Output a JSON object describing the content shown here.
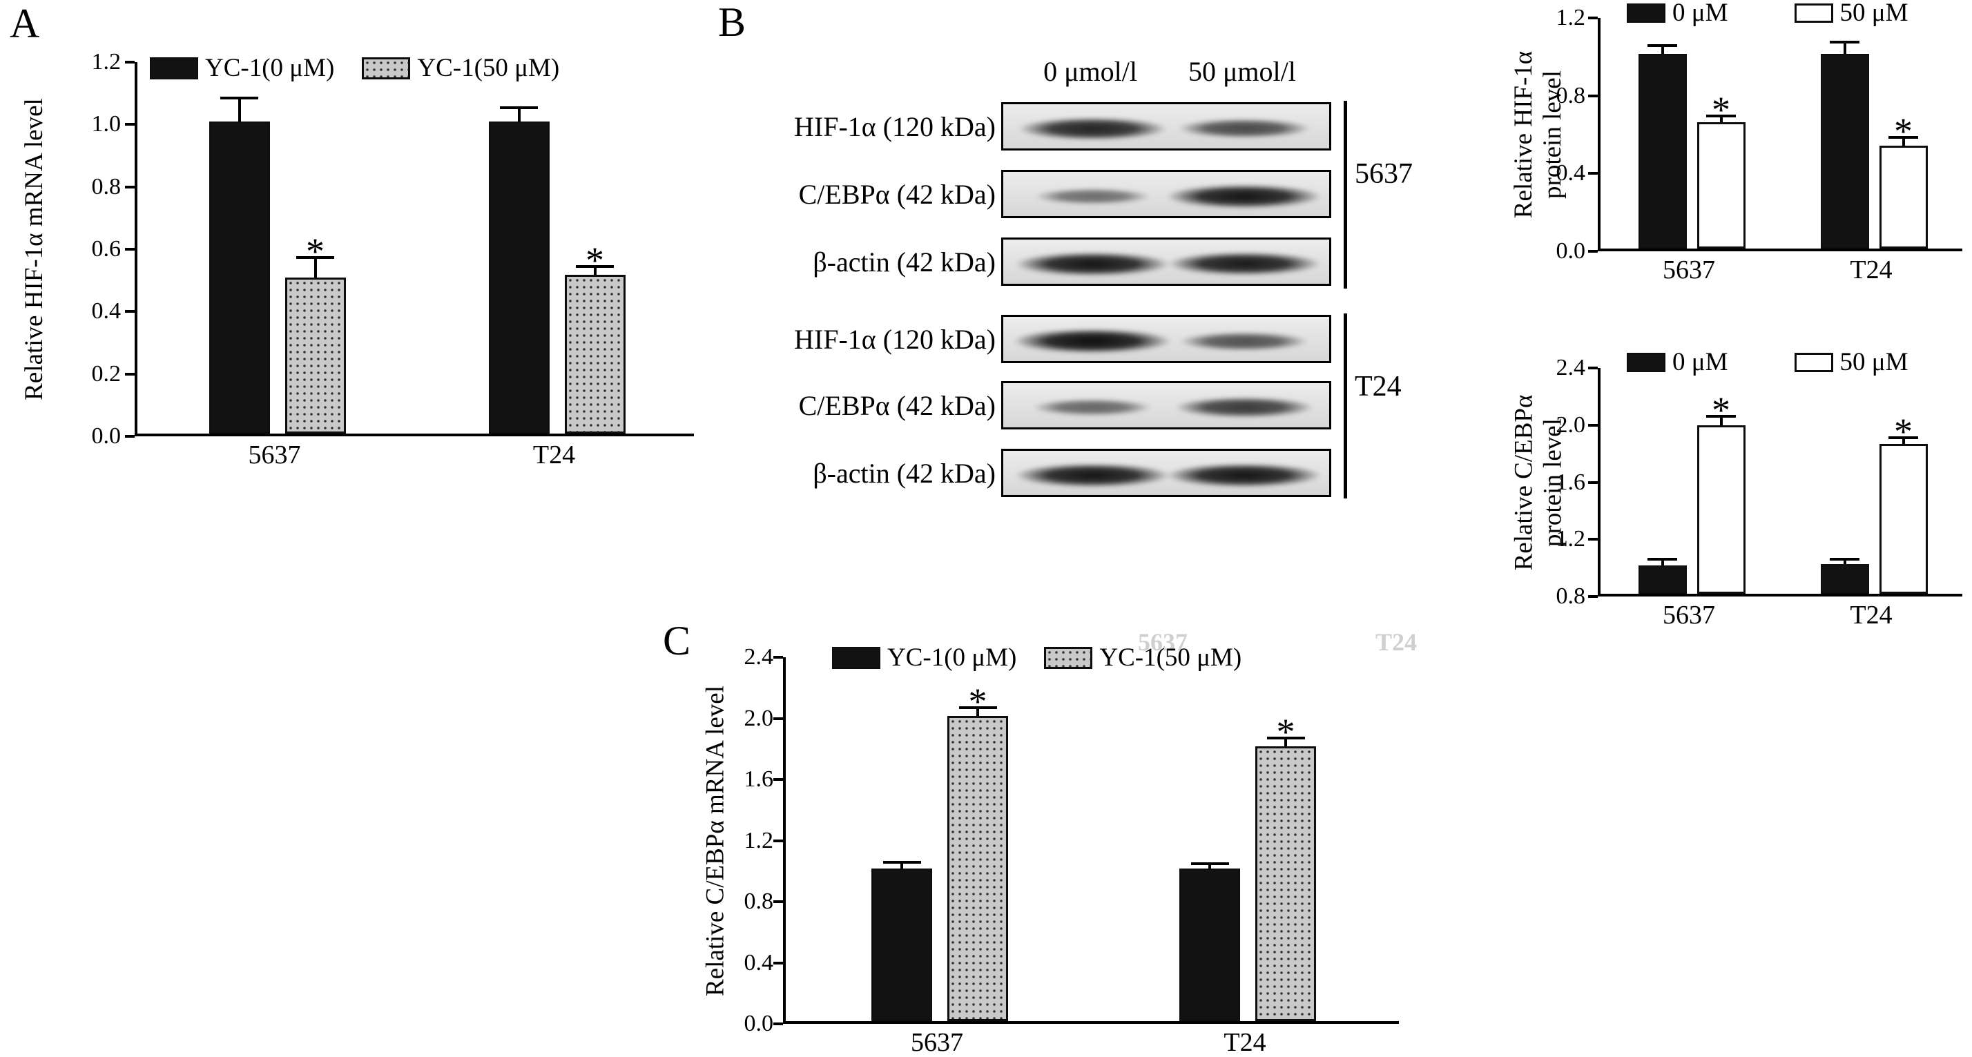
{
  "figure": {
    "panels": {
      "a": {
        "label": "A"
      },
      "b": {
        "label": "B"
      },
      "c": {
        "label": "C"
      }
    },
    "western_blot": {
      "col_headers": [
        "0 μmol/l",
        "50 μmol/l"
      ],
      "groups": [
        {
          "name": "5637",
          "rows": [
            {
              "label": "HIF-1α (120 kDa)",
              "bands": [
                0.85,
                0.6
              ]
            },
            {
              "label": "C/EBPα (42 kDa)",
              "bands": [
                0.35,
                0.95
              ]
            },
            {
              "label": "β-actin (42 kDa)",
              "bands": [
                0.95,
                0.92
              ]
            }
          ]
        },
        {
          "name": "T24",
          "rows": [
            {
              "label": "HIF-1α (120 kDa)",
              "bands": [
                1.0,
                0.55
              ]
            },
            {
              "label": "C/EBPα (42 kDa)",
              "bands": [
                0.4,
                0.7
              ]
            },
            {
              "label": "β-actin (42 kDa)",
              "bands": [
                0.95,
                0.95
              ]
            }
          ]
        }
      ]
    },
    "artifacts": {
      "c_top_left": "5637",
      "c_top_right": "T24"
    },
    "colors": {
      "bar_black": "#121212",
      "bar_white": "#ffffff",
      "bar_dotted_bg": "#c9c9c9",
      "axis": "#000000"
    }
  },
  "chart_data": [
    {
      "id": "hif1a_mrna",
      "type": "bar",
      "title": "",
      "xlabel": "",
      "ylabel": "Relative HIF-1α mRNA level",
      "ylabel_lines": [
        "Relative HIF-1α mRNA level"
      ],
      "categories": [
        "5637",
        "T24"
      ],
      "series": [
        {
          "name": "YC-1(0 μM)",
          "fill": "black",
          "values": [
            1.0,
            1.0
          ],
          "errors": [
            0.08,
            0.05
          ],
          "sig": [
            "",
            ""
          ]
        },
        {
          "name": "YC-1(50 μM)",
          "fill": "dotted",
          "values": [
            0.5,
            0.51
          ],
          "errors": [
            0.07,
            0.03
          ],
          "sig": [
            "*",
            "*"
          ]
        }
      ],
      "ylim": [
        0.0,
        1.2
      ],
      "yticks": [
        0.0,
        0.2,
        0.4,
        0.6,
        0.8,
        1.0,
        1.2
      ],
      "legend_position": "top",
      "grid": false
    },
    {
      "id": "hif1a_protein",
      "type": "bar",
      "title": "",
      "xlabel": "",
      "ylabel": "Relative HIF-1α protein level",
      "ylabel_lines": [
        "Relative HIF-1α",
        "protein level"
      ],
      "categories": [
        "5637",
        "T24"
      ],
      "series": [
        {
          "name": "0 μM",
          "fill": "black",
          "values": [
            1.0,
            1.0
          ],
          "errors": [
            0.05,
            0.07
          ],
          "sig": [
            "",
            ""
          ]
        },
        {
          "name": "50 μM",
          "fill": "white",
          "values": [
            0.65,
            0.53
          ],
          "errors": [
            0.04,
            0.05
          ],
          "sig": [
            "*",
            "*"
          ]
        }
      ],
      "ylim": [
        0.0,
        1.2
      ],
      "yticks": [
        0.0,
        0.4,
        0.8,
        1.2
      ],
      "legend_position": "top",
      "grid": false
    },
    {
      "id": "cebpa_protein",
      "type": "bar",
      "title": "",
      "xlabel": "",
      "ylabel": "Relative C/EBPα protein level",
      "ylabel_lines": [
        "Relative C/EBPα",
        "protein level"
      ],
      "categories": [
        "5637",
        "T24"
      ],
      "series": [
        {
          "name": "0 μM",
          "fill": "black",
          "values": [
            1.0,
            1.01
          ],
          "errors": [
            0.05,
            0.04
          ],
          "sig": [
            "",
            ""
          ]
        },
        {
          "name": "50 μM",
          "fill": "white",
          "values": [
            1.98,
            1.85
          ],
          "errors": [
            0.07,
            0.05
          ],
          "sig": [
            "*",
            "*"
          ]
        }
      ],
      "ylim": [
        0.8,
        2.4
      ],
      "yticks": [
        0.8,
        1.2,
        1.6,
        2.0,
        2.4
      ],
      "legend_position": "top",
      "grid": false
    },
    {
      "id": "cebpa_mrna",
      "type": "bar",
      "title": "",
      "xlabel": "",
      "ylabel": "Relative C/EBPα mRNA level",
      "ylabel_lines": [
        "Relative C/EBPα mRNA level"
      ],
      "categories": [
        "5637",
        "T24"
      ],
      "series": [
        {
          "name": "YC-1(0 μM)",
          "fill": "black",
          "values": [
            1.0,
            1.0
          ],
          "errors": [
            0.05,
            0.04
          ],
          "sig": [
            "",
            ""
          ]
        },
        {
          "name": "YC-1(50 μM)",
          "fill": "dotted",
          "values": [
            2.0,
            1.8
          ],
          "errors": [
            0.06,
            0.06
          ],
          "sig": [
            "*",
            "*"
          ]
        }
      ],
      "ylim": [
        0.0,
        2.4
      ],
      "yticks": [
        0.0,
        0.4,
        0.8,
        1.2,
        1.6,
        2.0,
        2.4
      ],
      "legend_position": "top",
      "grid": false
    }
  ]
}
